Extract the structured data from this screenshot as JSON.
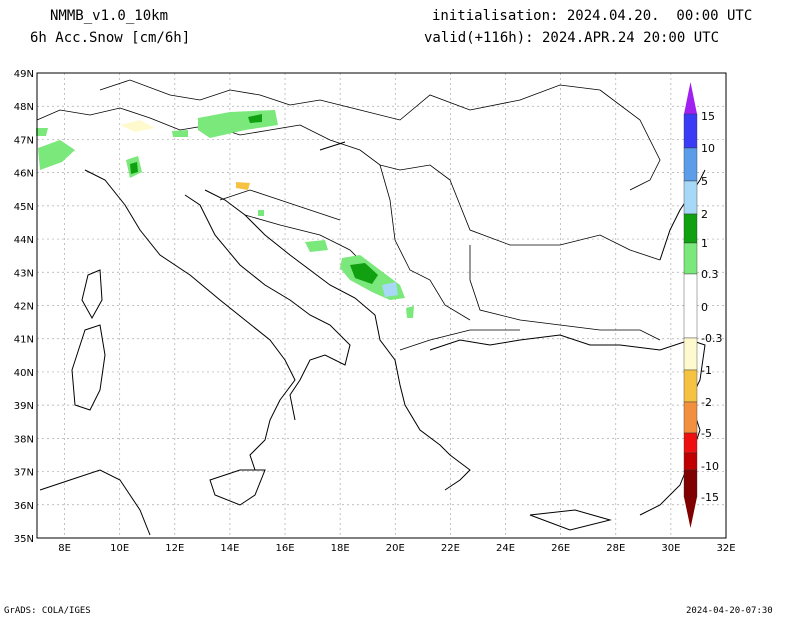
{
  "header": {
    "model": "NMMB_v1.0_10km",
    "field": "6h Acc.Snow [cm/6h]",
    "init": "initialisation: 2024.04.20.  00:00 UTC",
    "valid": "valid(+116h): 2024.APR.24 20:00 UTC"
  },
  "footer": {
    "left": "GrADS: COLA/IGES",
    "right": "2024-04-20-07:30"
  },
  "map": {
    "lon_range": [
      7,
      32
    ],
    "lat_range": [
      35,
      49
    ],
    "lon_labels": [
      "8E",
      "10E",
      "12E",
      "14E",
      "16E",
      "18E",
      "20E",
      "22E",
      "24E",
      "26E",
      "28E",
      "30E",
      "32E"
    ],
    "lat_labels": [
      "35N",
      "36N",
      "37N",
      "38N",
      "39N",
      "40N",
      "41N",
      "42N",
      "43N",
      "44N",
      "45N",
      "46N",
      "47N",
      "48N",
      "49N"
    ]
  },
  "colorbar": {
    "labels": [
      "15",
      "10",
      "5",
      "2",
      "1",
      "0.3",
      "0",
      "-0.3",
      "-1",
      "-2",
      "-5",
      "-10",
      "-15"
    ],
    "colors": {
      "c15": "#a020f0",
      "c10": "#3a3cf5",
      "c5": "#5b9de8",
      "c2": "#a8d8f8",
      "c1": "#10a010",
      "c03": "#7ae87a",
      "c0": "#ffffff",
      "m03": "#fffacd",
      "m1": "#f5c242",
      "m2": "#f29040",
      "m5": "#ee1010",
      "m10": "#c00000",
      "m15": "#800000"
    }
  }
}
